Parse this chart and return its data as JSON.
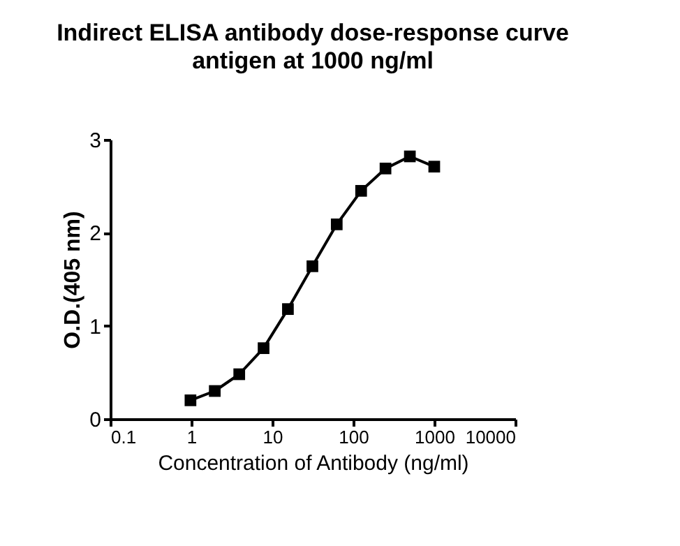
{
  "chart_data": {
    "type": "line",
    "title": "Indirect ELISA antibody dose-response curve",
    "subtitle": "antigen at 1000 ng/ml",
    "xlabel": "Concentration of Antibody (ng/ml)",
    "ylabel": "O.D.(405 nm)",
    "x": [
      0.977,
      1.95,
      3.91,
      7.81,
      15.6,
      31.3,
      62.5,
      125,
      250,
      500,
      1000
    ],
    "series": [
      {
        "color": "#000000",
        "values": [
          0.2,
          0.3,
          0.48,
          0.76,
          1.18,
          1.64,
          2.09,
          2.45,
          2.69,
          2.82,
          2.71
        ]
      }
    ],
    "log": "x",
    "xlim": [
      0.1,
      10000
    ],
    "xticks": [
      0.1,
      1,
      10,
      100,
      1000,
      10000
    ],
    "ylim": [
      0,
      3
    ],
    "yticks": [
      0,
      1,
      2,
      3
    ],
    "grid": false,
    "marker": "square",
    "line_style": "solid"
  }
}
